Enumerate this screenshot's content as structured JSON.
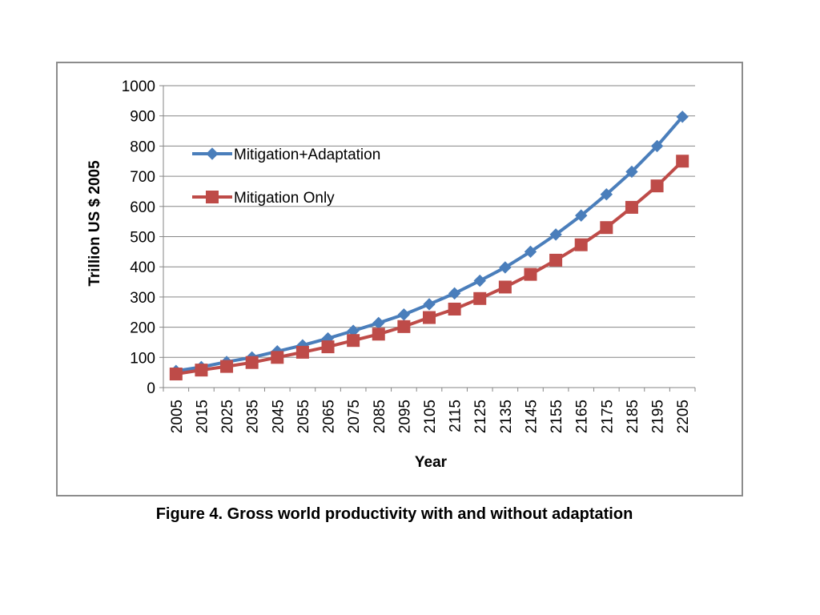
{
  "caption": "Figure 4.  Gross world productivity with and without adaptation",
  "chart_data": {
    "type": "line",
    "xlabel": "Year",
    "ylabel": "Trillion US $ 2005",
    "ylim": [
      0,
      1000
    ],
    "yticks": [
      "0",
      "100",
      "200",
      "300",
      "400",
      "500",
      "600",
      "700",
      "800",
      "900",
      "1000"
    ],
    "grid": "horizontal",
    "legend_position": "top-left",
    "categories": [
      "2005",
      "2015",
      "2025",
      "2035",
      "2045",
      "2055",
      "2065",
      "2075",
      "2085",
      "2095",
      "2105",
      "2115",
      "2125",
      "2135",
      "2145",
      "2155",
      "2165",
      "2175",
      "2185",
      "2195",
      "2205"
    ],
    "series": [
      {
        "name": "Mitigation+Adaptation",
        "color": "#4a7ebb",
        "marker": "diamond",
        "values": [
          55,
          68,
          85,
          100,
          120,
          140,
          163,
          188,
          214,
          242,
          276,
          312,
          354,
          398,
          450,
          507,
          570,
          640,
          715,
          800,
          897
        ]
      },
      {
        "name": "Mitigation Only",
        "color": "#be4b48",
        "marker": "square",
        "values": [
          45,
          58,
          70,
          83,
          100,
          117,
          135,
          156,
          177,
          202,
          232,
          260,
          295,
          333,
          375,
          422,
          473,
          530,
          597,
          668,
          750
        ]
      }
    ]
  }
}
